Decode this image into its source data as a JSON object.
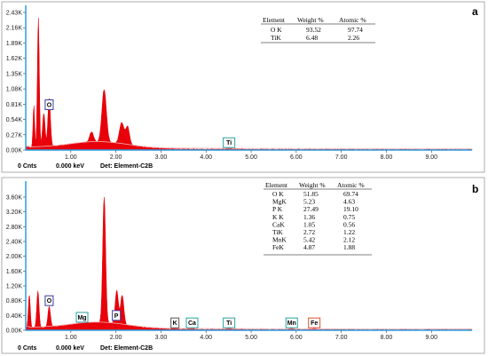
{
  "colors": {
    "spectrum": "#e8000a",
    "axis": "#2a9de0",
    "frame": "#9a9a9a",
    "markerO": "#3a3aa0",
    "markerTeal": "#2aa0a0",
    "markerFe": "#e05030",
    "markerK": "#555555"
  },
  "chart_data": [
    {
      "type": "area",
      "panel": "a",
      "xlim": [
        0,
        9.9
      ],
      "ylim": [
        0,
        2.43
      ],
      "x_ticks": [
        "1.00",
        "2.00",
        "3.00",
        "4.00",
        "5.00",
        "6.00",
        "7.00",
        "8.00",
        "9.00"
      ],
      "x_tick_values": [
        1,
        2,
        3,
        4,
        5,
        6,
        7,
        8,
        9
      ],
      "y_ticks": [
        "0.00K",
        "0.27K",
        "0.54K",
        "0.81K",
        "1.08K",
        "1.35K",
        "1.62K",
        "1.89K",
        "2.16K",
        "2.43K"
      ],
      "y_tick_values": [
        0,
        0.27,
        0.54,
        0.81,
        1.08,
        1.35,
        1.62,
        1.89,
        2.16,
        2.43
      ],
      "peaks": [
        {
          "x": 0.18,
          "height": 0.75,
          "width": 0.025
        },
        {
          "x": 0.28,
          "height": 2.3,
          "width": 0.03
        },
        {
          "x": 0.4,
          "height": 0.6,
          "width": 0.04
        },
        {
          "x": 0.52,
          "height": 0.85,
          "width": 0.04
        },
        {
          "x": 1.46,
          "height": 0.18,
          "width": 0.06
        },
        {
          "x": 1.74,
          "height": 0.93,
          "width": 0.07
        },
        {
          "x": 2.13,
          "height": 0.38,
          "width": 0.07
        },
        {
          "x": 2.26,
          "height": 0.32,
          "width": 0.06
        },
        {
          "x": 4.51,
          "height": 0.03,
          "width": 0.05
        }
      ],
      "element_labels": [
        {
          "label": "O",
          "x": 0.52,
          "y": 0.8,
          "color": "#3a3aa0"
        },
        {
          "label": "Ti",
          "x": 4.51,
          "y": 0.13,
          "color": "#2aa0a0"
        }
      ],
      "table": {
        "headers": [
          "Element",
          "Weight %",
          "Atomic %"
        ],
        "rows": [
          [
            "O K",
            "93.52",
            "97.74"
          ],
          [
            "TiK",
            "6.48",
            "2.26"
          ]
        ]
      },
      "footer": {
        "cnts": "0 Cnts",
        "kev": "0.000 keV",
        "det": "Det: Element-C2B"
      }
    },
    {
      "type": "area",
      "panel": "b",
      "xlim": [
        0,
        9.9
      ],
      "ylim": [
        0,
        3.6
      ],
      "x_ticks": [
        "1.00",
        "2.00",
        "3.00",
        "4.00",
        "5.00",
        "6.00",
        "7.00",
        "8.00",
        "9.00"
      ],
      "x_tick_values": [
        1,
        2,
        3,
        4,
        5,
        6,
        7,
        8,
        9
      ],
      "y_ticks": [
        "0.00K",
        "0.40K",
        "0.80K",
        "1.20K",
        "1.60K",
        "2.00K",
        "2.40K",
        "2.80K",
        "3.20K",
        "3.60K"
      ],
      "y_tick_values": [
        0,
        0.4,
        0.8,
        1.2,
        1.6,
        2.0,
        2.4,
        2.8,
        3.2,
        3.6
      ],
      "peaks": [
        {
          "x": 0.08,
          "height": 0.9,
          "width": 0.03
        },
        {
          "x": 0.27,
          "height": 1.0,
          "width": 0.035
        },
        {
          "x": 0.52,
          "height": 0.55,
          "width": 0.04
        },
        {
          "x": 1.25,
          "height": 0.28,
          "width": 0.05
        },
        {
          "x": 1.74,
          "height": 3.45,
          "width": 0.045
        },
        {
          "x": 2.02,
          "height": 0.9,
          "width": 0.05
        },
        {
          "x": 2.14,
          "height": 0.8,
          "width": 0.05
        },
        {
          "x": 3.31,
          "height": 0.05,
          "width": 0.05
        },
        {
          "x": 3.69,
          "height": 0.05,
          "width": 0.05
        },
        {
          "x": 4.51,
          "height": 0.05,
          "width": 0.05
        },
        {
          "x": 5.9,
          "height": 0.04,
          "width": 0.05
        },
        {
          "x": 6.4,
          "height": 0.04,
          "width": 0.05
        }
      ],
      "element_labels": [
        {
          "label": "O",
          "x": 0.52,
          "y": 0.8,
          "color": "#3a3aa0"
        },
        {
          "label": "Mg",
          "x": 1.25,
          "y": 0.35,
          "color": "#2aa0a0"
        },
        {
          "label": "P",
          "x": 2.01,
          "y": 0.4,
          "color": "#3a3aa0"
        },
        {
          "label": "K",
          "x": 3.31,
          "y": 0.2,
          "color": "#555555"
        },
        {
          "label": "Ca",
          "x": 3.69,
          "y": 0.2,
          "color": "#2aa0a0"
        },
        {
          "label": "Ti",
          "x": 4.51,
          "y": 0.2,
          "color": "#2aa0a0"
        },
        {
          "label": "Mn",
          "x": 5.9,
          "y": 0.2,
          "color": "#2aa0a0"
        },
        {
          "label": "Fe",
          "x": 6.4,
          "y": 0.2,
          "color": "#e05030"
        }
      ],
      "table": {
        "headers": [
          "Element",
          "Weight %",
          "Atomic %"
        ],
        "rows": [
          [
            "O K",
            "51.85",
            "69.74"
          ],
          [
            "MgK",
            "5.23",
            "4.63"
          ],
          [
            "P K",
            "27.49",
            "19.10"
          ],
          [
            "K K",
            "1.36",
            "0.75"
          ],
          [
            "CaK",
            "1.05",
            "0.56"
          ],
          [
            "TiK",
            "2.72",
            "1.22"
          ],
          [
            "MnK",
            "5.42",
            "2.12"
          ],
          [
            "FeK",
            "4.87",
            "1.88"
          ]
        ]
      },
      "footer": {
        "cnts": "0 Cnts",
        "kev": "0.000 keV",
        "det": "Det: Element-C2B"
      }
    }
  ]
}
